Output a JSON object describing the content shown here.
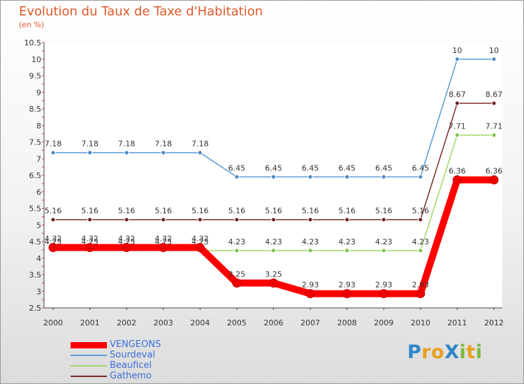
{
  "title": "Evolution du Taux de Taxe d'Habitation",
  "subtitle": "(en %)",
  "logo": {
    "letters": [
      {
        "ch": "P",
        "color": "#2f86c9"
      },
      {
        "ch": "r",
        "color": "#e8a020"
      },
      {
        "ch": "o",
        "color": "#e8a020"
      },
      {
        "ch": "X",
        "color": "#2f86c9"
      },
      {
        "ch": "i",
        "color": "#7db93c"
      },
      {
        "ch": "t",
        "color": "#e8a020"
      },
      {
        "ch": "i",
        "color": "#7db93c"
      }
    ]
  },
  "chart_data": {
    "type": "line",
    "title": "Evolution du Taux de Taxe d'Habitation",
    "ylabel": "(en %)",
    "xlabel": "",
    "ylim": [
      2.5,
      10.5
    ],
    "yticks": [
      "2.5",
      "3",
      "3.5",
      "4",
      "4.5",
      "5",
      "5.5",
      "6",
      "6.5",
      "7",
      "7.5",
      "8",
      "8.5",
      "9",
      "9.5",
      "10",
      "10.5"
    ],
    "categories": [
      "2000",
      "2001",
      "2002",
      "2003",
      "2004",
      "2005",
      "2006",
      "2007",
      "2008",
      "2009",
      "2010",
      "2011",
      "2012"
    ],
    "legend_position": "bottom-left",
    "series": [
      {
        "name": "Sourdeval",
        "color": "#5b9bd5",
        "marker": "#4a86c0",
        "values": [
          7.18,
          7.18,
          7.18,
          7.18,
          7.18,
          6.45,
          6.45,
          6.45,
          6.45,
          6.45,
          6.45,
          10,
          10
        ],
        "labels": [
          "7.18",
          "7.18",
          "7.18",
          "7.18",
          "7.18",
          "6.45",
          "6.45",
          "6.45",
          "6.45",
          "6.45",
          "6.45",
          "10",
          "10"
        ]
      },
      {
        "name": "Gathemo",
        "color": "#7a2a2a",
        "marker": "#6b1f1f",
        "values": [
          5.16,
          5.16,
          5.16,
          5.16,
          5.16,
          5.16,
          5.16,
          5.16,
          5.16,
          5.16,
          5.16,
          8.67,
          8.67
        ],
        "labels": [
          "5.16",
          "5.16",
          "5.16",
          "5.16",
          "5.16",
          "5.16",
          "5.16",
          "5.16",
          "5.16",
          "5.16",
          "5.16",
          "8.67",
          "8.67"
        ]
      },
      {
        "name": "Beauficel",
        "color": "#9ed86a",
        "marker": "#7fc043",
        "values": [
          4.23,
          4.23,
          4.23,
          4.23,
          4.23,
          4.23,
          4.23,
          4.23,
          4.23,
          4.23,
          4.23,
          7.71,
          7.71
        ],
        "labels": [
          "4.23",
          "4.23",
          "4.23",
          "4.23",
          "4.23",
          "4.23",
          "4.23",
          "4.23",
          "4.23",
          "4.23",
          "4.23",
          "7.71",
          "7.71"
        ]
      },
      {
        "name": "VENGEONS",
        "color": "#ff0000",
        "marker": "#ee0000",
        "bold": true,
        "values": [
          4.32,
          4.32,
          4.32,
          4.32,
          4.32,
          3.25,
          3.25,
          2.93,
          2.93,
          2.93,
          2.93,
          6.36,
          6.36
        ],
        "labels": [
          "4.32",
          "4.32",
          "4.32",
          "4.32",
          "4.32",
          "3.25",
          "3.25",
          "2.93",
          "2.93",
          "2.93",
          "2.93",
          "6.36",
          "6.36"
        ]
      }
    ],
    "legend": [
      "VENGEONS",
      "Sourdeval",
      "Beauficel",
      "Gathemo"
    ]
  }
}
